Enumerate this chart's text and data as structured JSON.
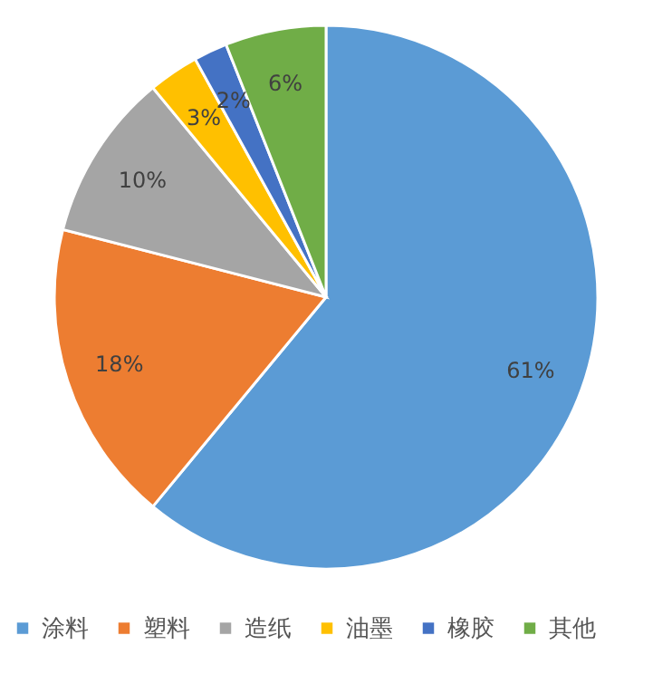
{
  "chart_data": {
    "type": "pie",
    "categories": [
      "涂料",
      "塑料",
      "造纸",
      "油墨",
      "橡胶",
      "其他"
    ],
    "values": [
      61,
      18,
      10,
      3,
      2,
      6
    ],
    "colors": [
      "#5b9bd5",
      "#ed7d31",
      "#a5a5a5",
      "#ffc000",
      "#4472c4",
      "#70ad47"
    ],
    "value_labels": [
      "61%",
      "18%",
      "10%",
      "3%",
      "2%",
      "6%"
    ],
    "legend": "bottom"
  }
}
